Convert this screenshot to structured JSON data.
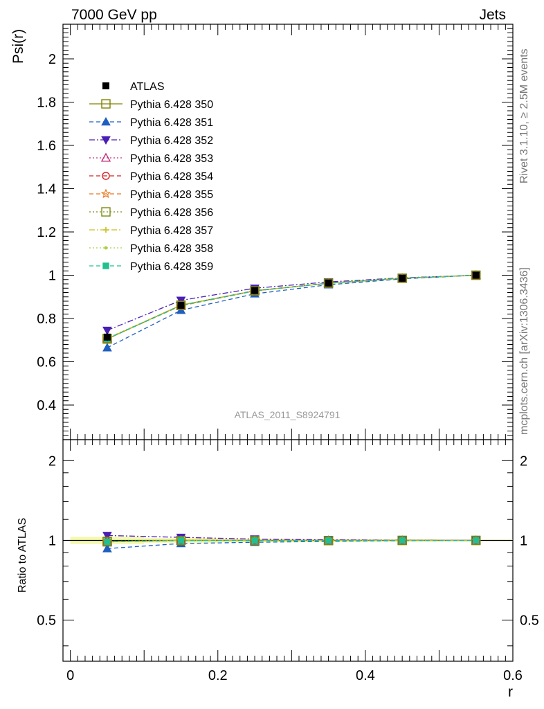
{
  "header": {
    "left": "7000 GeV pp",
    "right": "Jets"
  },
  "side_labels": {
    "rivet": "Rivet 3.1.10, ≥ 2.5M events",
    "mcplots": "mcplots.cern.ch [arXiv:1306.3436]"
  },
  "analysis_ref": "ATLAS_2011_S8924791",
  "chart_data": {
    "type": "line",
    "xlabel": "r",
    "ylabel": "Psi(r)",
    "ratio_ylabel": "Ratio to ATLAS",
    "xlim": [
      -0.01,
      0.6
    ],
    "ylim": [
      0.24,
      2.16
    ],
    "ratio_ylim": [
      0.35,
      2.4
    ],
    "ratio_log_scale": true,
    "x_ticks": [
      "0",
      "0.2",
      "0.4",
      "0.6"
    ],
    "y_ticks": [
      "0.4",
      "0.6",
      "0.8",
      "1",
      "1.2",
      "1.4",
      "1.6",
      "1.8",
      "2"
    ],
    "ratio_y_ticks": [
      "0.5",
      "1",
      "2"
    ],
    "x": [
      0.05,
      0.15,
      0.25,
      0.35,
      0.45,
      0.55
    ],
    "reference": {
      "name": "ATLAS",
      "values": [
        0.714,
        0.861,
        0.929,
        0.964,
        0.986,
        1.0
      ],
      "errors": [
        0.018,
        0.012,
        0.008,
        0.005,
        0.003,
        0.0
      ]
    },
    "series": [
      {
        "name": "Pythia 6.428 350",
        "color": "#808000",
        "dash": "solid",
        "marker": "square-open",
        "values": [
          0.705,
          0.862,
          0.928,
          0.963,
          0.986,
          1.0
        ]
      },
      {
        "name": "Pythia 6.428 351",
        "color": "#1f5fbf",
        "dash": "6,4",
        "marker": "triangle-up",
        "values": [
          0.665,
          0.838,
          0.914,
          0.956,
          0.983,
          1.0
        ]
      },
      {
        "name": "Pythia 6.428 352",
        "color": "#4b1fb5",
        "dash": "8,3,2,3",
        "marker": "triangle-down",
        "values": [
          0.745,
          0.884,
          0.94,
          0.969,
          0.988,
          1.0
        ]
      },
      {
        "name": "Pythia 6.428 353",
        "color": "#c0307a",
        "dash": "2,3",
        "marker": "triangle-up-open",
        "values": [
          0.708,
          0.86,
          0.928,
          0.963,
          0.986,
          1.0
        ]
      },
      {
        "name": "Pythia 6.428 354",
        "color": "#d42020",
        "dash": "6,4",
        "marker": "circle-open",
        "values": [
          0.707,
          0.861,
          0.929,
          0.964,
          0.986,
          1.0
        ]
      },
      {
        "name": "Pythia 6.428 355",
        "color": "#e87820",
        "dash": "6,4",
        "marker": "star-open",
        "values": [
          0.706,
          0.859,
          0.927,
          0.963,
          0.986,
          1.0
        ]
      },
      {
        "name": "Pythia 6.428 356",
        "color": "#7a8a10",
        "dash": "2,3",
        "marker": "square-open",
        "values": [
          0.708,
          0.86,
          0.928,
          0.963,
          0.986,
          1.0
        ]
      },
      {
        "name": "Pythia 6.428 357",
        "color": "#c8c020",
        "dash": "8,3,2,3",
        "marker": "cross",
        "values": [
          0.707,
          0.861,
          0.928,
          0.963,
          0.986,
          1.0
        ]
      },
      {
        "name": "Pythia 6.428 358",
        "color": "#a8d040",
        "dash": "2,3",
        "marker": "dot",
        "values": [
          0.709,
          0.862,
          0.929,
          0.964,
          0.986,
          1.0
        ]
      },
      {
        "name": "Pythia 6.428 359",
        "color": "#20c090",
        "dash": "6,4",
        "marker": "square",
        "values": [
          0.706,
          0.86,
          0.928,
          0.963,
          0.986,
          1.0
        ]
      }
    ],
    "legend_placement": "top-left"
  }
}
